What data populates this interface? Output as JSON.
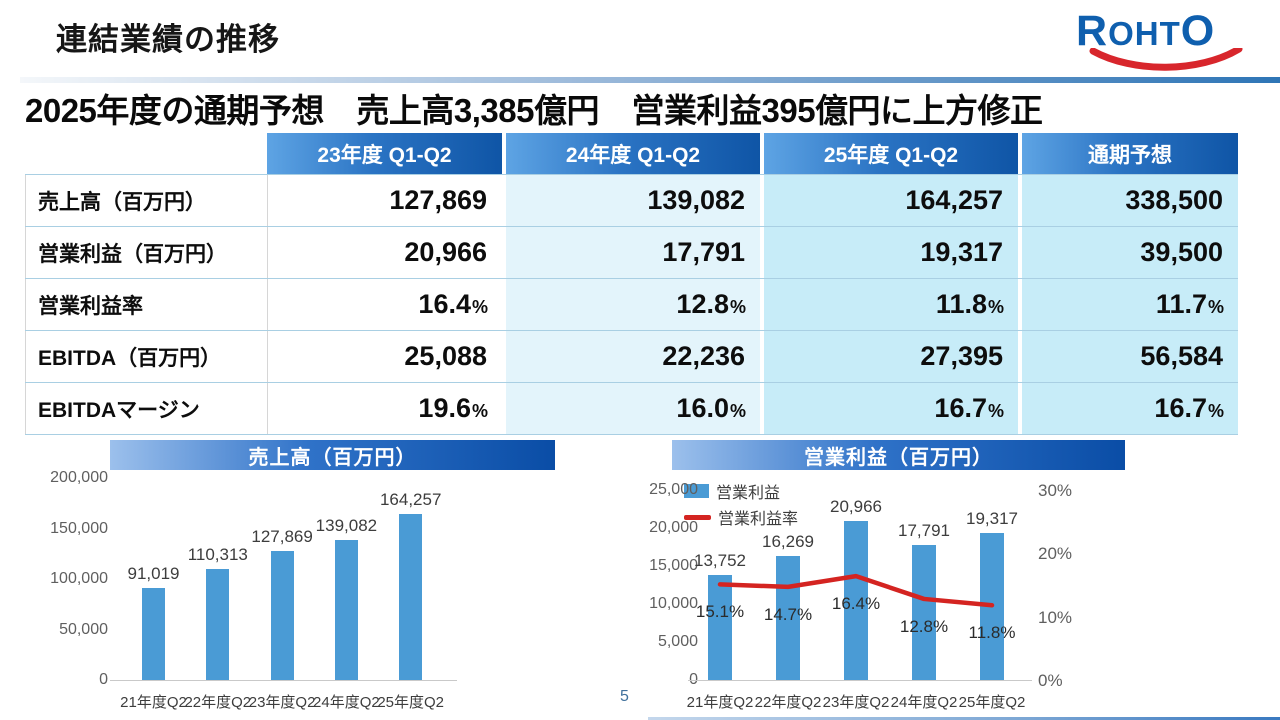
{
  "slide": {
    "title": "連結業績の推移",
    "headline": "2025年度の通期予想　売上高3,385億円　営業利益395億円に上方修正",
    "page_number": "5"
  },
  "logo": {
    "text": "ROHTO",
    "letters": [
      "R",
      "O",
      "H",
      "T",
      "O"
    ]
  },
  "table": {
    "col_headers": [
      "23年度 Q1-Q2",
      "24年度 Q1-Q2",
      "25年度 Q1-Q2",
      "通期予想"
    ],
    "rows": [
      {
        "label": "売上高（百万円）",
        "unit": "",
        "values": [
          "127,869",
          "139,082",
          "164,257",
          "338,500"
        ]
      },
      {
        "label": "営業利益（百万円）",
        "unit": "",
        "values": [
          "20,966",
          "17,791",
          "19,317",
          "39,500"
        ]
      },
      {
        "label": "営業利益率",
        "unit": "%",
        "values": [
          "16.4",
          "12.8",
          "11.8",
          "11.7"
        ]
      },
      {
        "label": "EBITDA（百万円）",
        "unit": "",
        "values": [
          "25,088",
          "22,236",
          "27,395",
          "56,584"
        ]
      },
      {
        "label": "EBITDAマージン",
        "unit": "%",
        "values": [
          "19.6",
          "16.0",
          "16.7",
          "16.7"
        ]
      }
    ]
  },
  "chart_data": [
    {
      "type": "bar",
      "title": "売上高（百万円）",
      "categories": [
        "21年度Q2",
        "22年度Q2",
        "23年度Q2",
        "24年度Q2",
        "25年度Q2"
      ],
      "values": [
        91019,
        110313,
        127869,
        139082,
        164257
      ],
      "value_labels": [
        "91,019",
        "110,313",
        "127,869",
        "139,082",
        "164,257"
      ],
      "xlabel": "",
      "ylabel": "",
      "ylim": [
        0,
        200000
      ],
      "ytick_values": [
        200000,
        150000,
        100000,
        50000,
        0
      ],
      "ytick_labels": [
        "200,000",
        "150,000",
        "100,000",
        "50,000",
        "0"
      ],
      "grid": false,
      "legend": false
    },
    {
      "type": "bar-line",
      "title": "営業利益（百万円）",
      "categories": [
        "21年度Q2",
        "22年度Q2",
        "23年度Q2",
        "24年度Q2",
        "25年度Q2"
      ],
      "series": [
        {
          "name": "営業利益",
          "type": "bar",
          "axis": "left",
          "values": [
            13752,
            16269,
            20966,
            17791,
            19317
          ],
          "value_labels": [
            "13,752",
            "16,269",
            "20,966",
            "17,791",
            "19,317"
          ]
        },
        {
          "name": "営業利益率",
          "type": "line",
          "axis": "right",
          "values": [
            15.1,
            14.7,
            16.4,
            12.8,
            11.8
          ],
          "value_labels": [
            "15.1%",
            "14.7%",
            "16.4%",
            "12.8%",
            "11.8%"
          ]
        }
      ],
      "left_axis": {
        "lim": [
          0,
          25000
        ],
        "tick_labels": [
          "25,000",
          "20,000",
          "15,000",
          "10,000",
          "5,000",
          "0"
        ]
      },
      "right_axis": {
        "lim_pct": [
          0,
          30
        ],
        "tick_labels": [
          "30%",
          "20%",
          "10%",
          "0%"
        ]
      },
      "grid": false,
      "legend_position": "top-left"
    }
  ],
  "colors": {
    "bar_blue": "#4a9bd5",
    "line_red": "#d42421",
    "accent_blue": "#2e75b6",
    "header_gradient_from": "#5ea4e4",
    "header_gradient_to": "#0f55a6",
    "col_light_blue": "#e3f4fb",
    "col_cyan": "#c7ecf8",
    "logo_blue": "#0f5fae",
    "logo_red": "#d8262c"
  }
}
